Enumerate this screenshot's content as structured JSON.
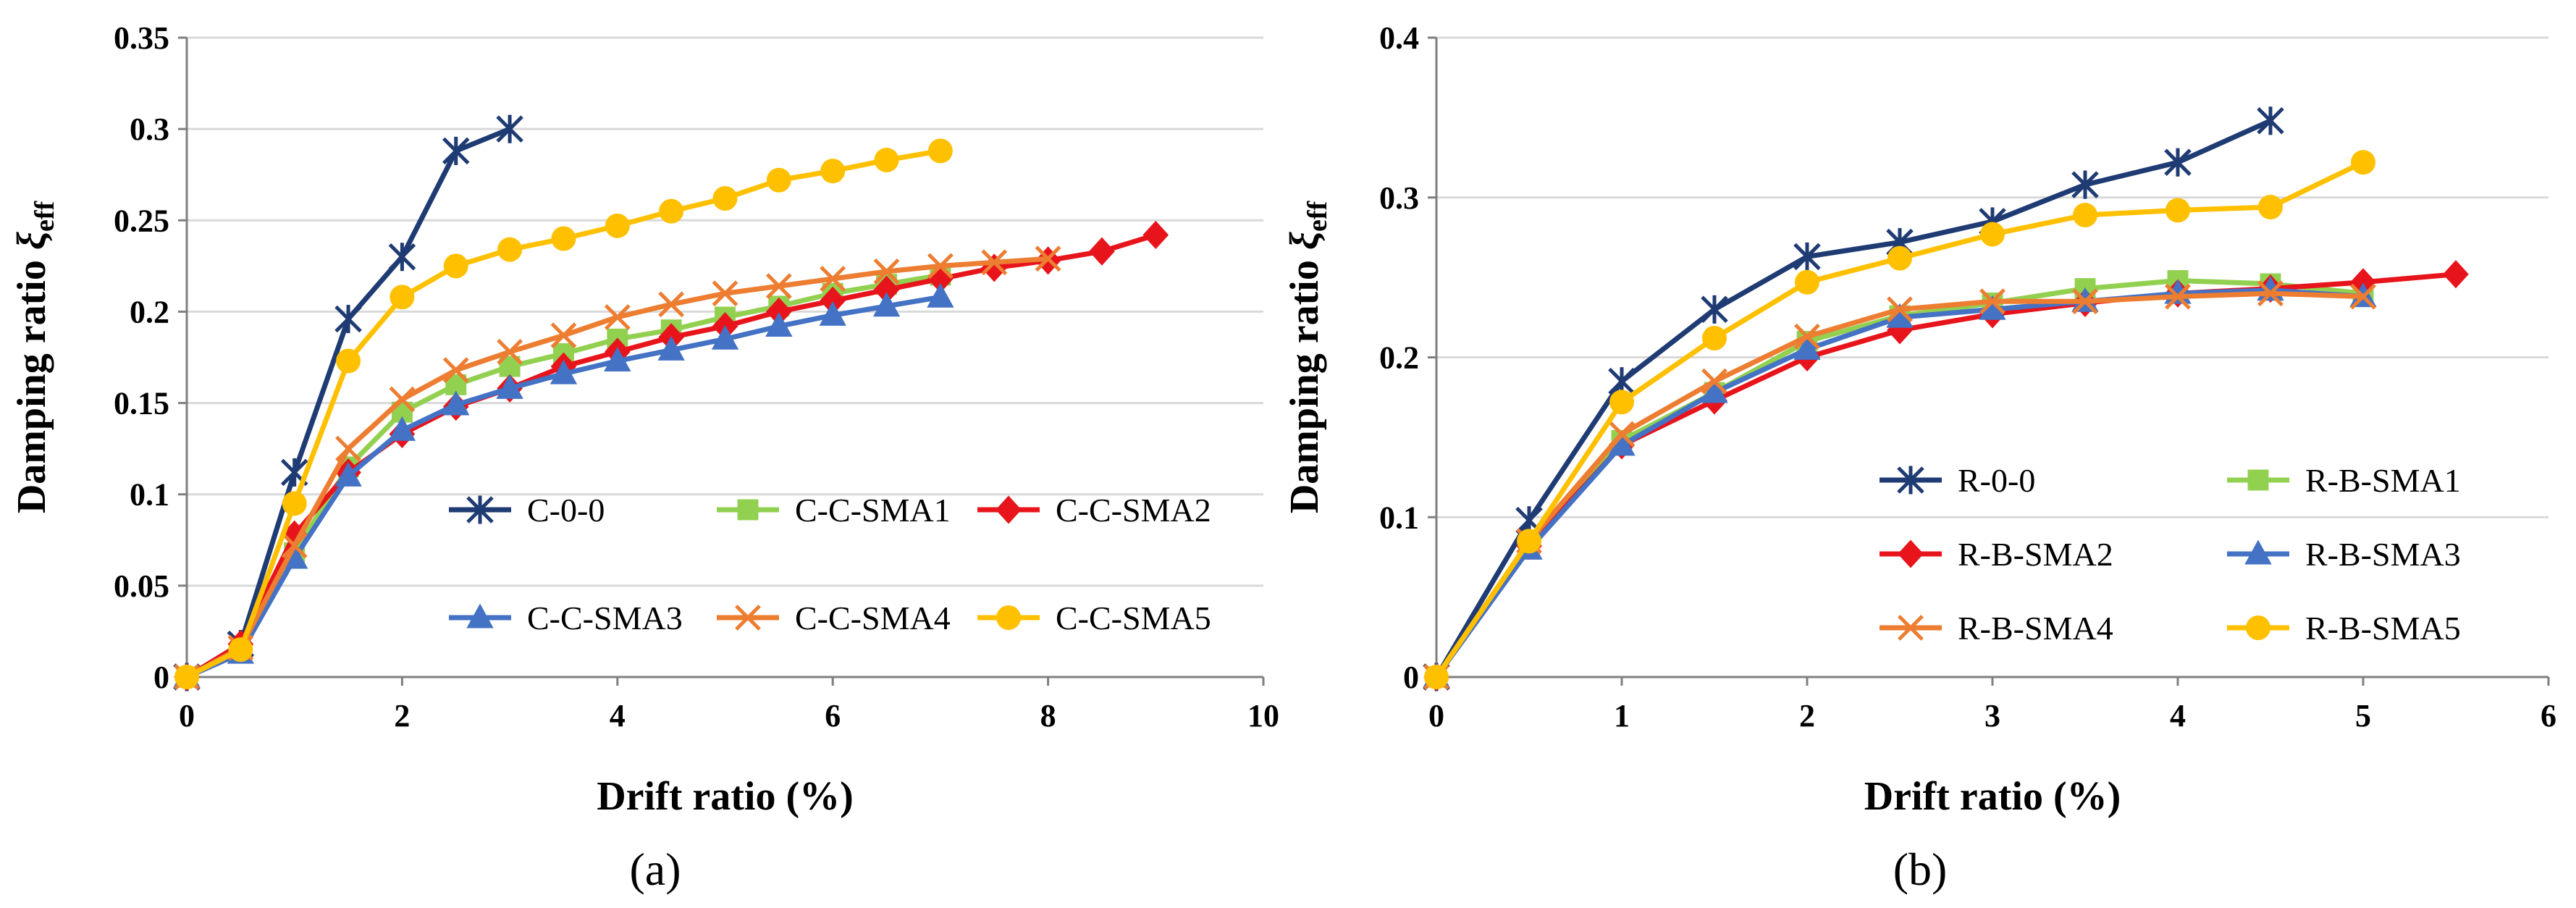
{
  "chart_data": [
    {
      "type": "line",
      "panel_label": "(a)",
      "title": "",
      "xlabel": "Drift ratio (%)",
      "ylabel_main": "Damping ratio ",
      "ylabel_symbol": "ξ",
      "ylabel_sub": "eff",
      "xlim": [
        0,
        10
      ],
      "ylim": [
        0,
        0.35
      ],
      "xticks": [
        "0",
        "2",
        "4",
        "6",
        "8",
        "10"
      ],
      "yticks": [
        "0",
        "0.05",
        "0.1",
        "0.15",
        "0.2",
        "0.25",
        "0.3",
        "0.35"
      ],
      "grid": "horizontal",
      "legend_columns": 3,
      "series": [
        {
          "name": "C-0-0",
          "marker": "star",
          "color": "#1f3b73",
          "x": [
            0,
            0.5,
            1,
            1.5,
            2,
            2.5,
            3
          ],
          "y": [
            0,
            0.018,
            0.112,
            0.196,
            0.23,
            0.288,
            0.3
          ]
        },
        {
          "name": "C-C-SMA1",
          "marker": "square",
          "color": "#92d050",
          "x": [
            0,
            0.5,
            1,
            1.5,
            2,
            2.5,
            3,
            3.5,
            4,
            4.5,
            5,
            5.5,
            6,
            6.5,
            7
          ],
          "y": [
            0,
            0.014,
            0.068,
            0.115,
            0.145,
            0.16,
            0.17,
            0.177,
            0.185,
            0.19,
            0.197,
            0.203,
            0.21,
            0.215,
            0.22
          ]
        },
        {
          "name": "C-C-SMA2",
          "marker": "diamond",
          "color": "#e8141b",
          "x": [
            0,
            0.5,
            1,
            1.5,
            2,
            2.5,
            3,
            3.5,
            4,
            4.5,
            5,
            5.5,
            6,
            6.5,
            7,
            7.5,
            8,
            8.5,
            9
          ],
          "y": [
            0,
            0.018,
            0.078,
            0.112,
            0.133,
            0.148,
            0.158,
            0.17,
            0.178,
            0.186,
            0.192,
            0.2,
            0.206,
            0.212,
            0.218,
            0.224,
            0.228,
            0.233,
            0.242
          ]
        },
        {
          "name": "C-C-SMA3",
          "marker": "triangle",
          "color": "#4472c4",
          "x": [
            0,
            0.5,
            1,
            1.5,
            2,
            2.5,
            3,
            3.5,
            4,
            4.5,
            5,
            5.5,
            6,
            6.5,
            7
          ],
          "y": [
            0,
            0.013,
            0.065,
            0.11,
            0.135,
            0.149,
            0.158,
            0.166,
            0.173,
            0.179,
            0.185,
            0.192,
            0.198,
            0.203,
            0.208
          ]
        },
        {
          "name": "C-C-SMA4",
          "marker": "x",
          "color": "#ed7d31",
          "x": [
            0,
            0.5,
            1,
            1.5,
            2,
            2.5,
            3,
            3.5,
            4,
            4.5,
            5,
            5.5,
            6,
            6.5,
            7,
            7.5,
            8
          ],
          "y": [
            0,
            0.016,
            0.072,
            0.125,
            0.152,
            0.168,
            0.178,
            0.187,
            0.197,
            0.204,
            0.21,
            0.214,
            0.218,
            0.222,
            0.225,
            0.227,
            0.229
          ]
        },
        {
          "name": "C-C-SMA5",
          "marker": "circle",
          "color": "#ffc000",
          "x": [
            0,
            0.5,
            1,
            1.5,
            2,
            2.5,
            3,
            3.5,
            4,
            4.5,
            5,
            5.5,
            6,
            6.5,
            7
          ],
          "y": [
            0,
            0.015,
            0.095,
            0.173,
            0.208,
            0.225,
            0.234,
            0.24,
            0.247,
            0.255,
            0.262,
            0.272,
            0.277,
            0.283,
            0.288
          ]
        }
      ]
    },
    {
      "type": "line",
      "panel_label": "(b)",
      "title": "",
      "xlabel": "Drift ratio (%)",
      "ylabel_main": "Damping ratio ",
      "ylabel_symbol": "ξ",
      "ylabel_sub": "eff",
      "xlim": [
        0,
        6
      ],
      "ylim": [
        0,
        0.4
      ],
      "xticks": [
        "0",
        "1",
        "2",
        "3",
        "4",
        "5",
        "6"
      ],
      "yticks": [
        "0",
        "0.1",
        "0.2",
        "0.3",
        "0.4"
      ],
      "grid": "horizontal",
      "legend_columns": 2,
      "series": [
        {
          "name": "R-0-0",
          "marker": "star",
          "color": "#1f3b73",
          "x": [
            0,
            0.5,
            1,
            1.5,
            2,
            2.5,
            3,
            3.5,
            4,
            4.5
          ],
          "y": [
            0,
            0.098,
            0.185,
            0.23,
            0.263,
            0.272,
            0.285,
            0.308,
            0.322,
            0.348
          ]
        },
        {
          "name": "R-B-SMA1",
          "marker": "square",
          "color": "#92d050",
          "x": [
            0,
            0.5,
            1,
            1.5,
            2,
            2.5,
            3,
            3.5,
            4,
            4.5,
            5
          ],
          "y": [
            0,
            0.082,
            0.148,
            0.178,
            0.21,
            0.226,
            0.234,
            0.243,
            0.248,
            0.246,
            0.24
          ]
        },
        {
          "name": "R-B-SMA2",
          "marker": "diamond",
          "color": "#e8141b",
          "x": [
            0,
            0.5,
            1,
            1.5,
            2,
            2.5,
            3,
            3.5,
            4,
            4.5,
            5,
            5.5
          ],
          "y": [
            0,
            0.082,
            0.145,
            0.173,
            0.2,
            0.217,
            0.227,
            0.234,
            0.24,
            0.243,
            0.247,
            0.252
          ]
        },
        {
          "name": "R-B-SMA3",
          "marker": "triangle",
          "color": "#4472c4",
          "x": [
            0,
            0.5,
            1,
            1.5,
            2,
            2.5,
            3,
            3.5,
            4,
            4.5,
            5
          ],
          "y": [
            0,
            0.08,
            0.145,
            0.178,
            0.205,
            0.225,
            0.23,
            0.235,
            0.24,
            0.242,
            0.238
          ]
        },
        {
          "name": "R-B-SMA4",
          "marker": "x",
          "color": "#ed7d31",
          "x": [
            0,
            0.5,
            1,
            1.5,
            2,
            2.5,
            3,
            3.5,
            4,
            4.5,
            5
          ],
          "y": [
            0,
            0.085,
            0.152,
            0.185,
            0.213,
            0.23,
            0.235,
            0.235,
            0.238,
            0.24,
            0.238
          ]
        },
        {
          "name": "R-B-SMA5",
          "marker": "circle",
          "color": "#ffc000",
          "x": [
            0,
            0.5,
            1,
            1.5,
            2,
            2.5,
            3,
            3.5,
            4,
            4.5,
            5
          ],
          "y": [
            0,
            0.085,
            0.172,
            0.212,
            0.247,
            0.262,
            0.277,
            0.289,
            0.292,
            0.294,
            0.322
          ]
        }
      ]
    }
  ]
}
